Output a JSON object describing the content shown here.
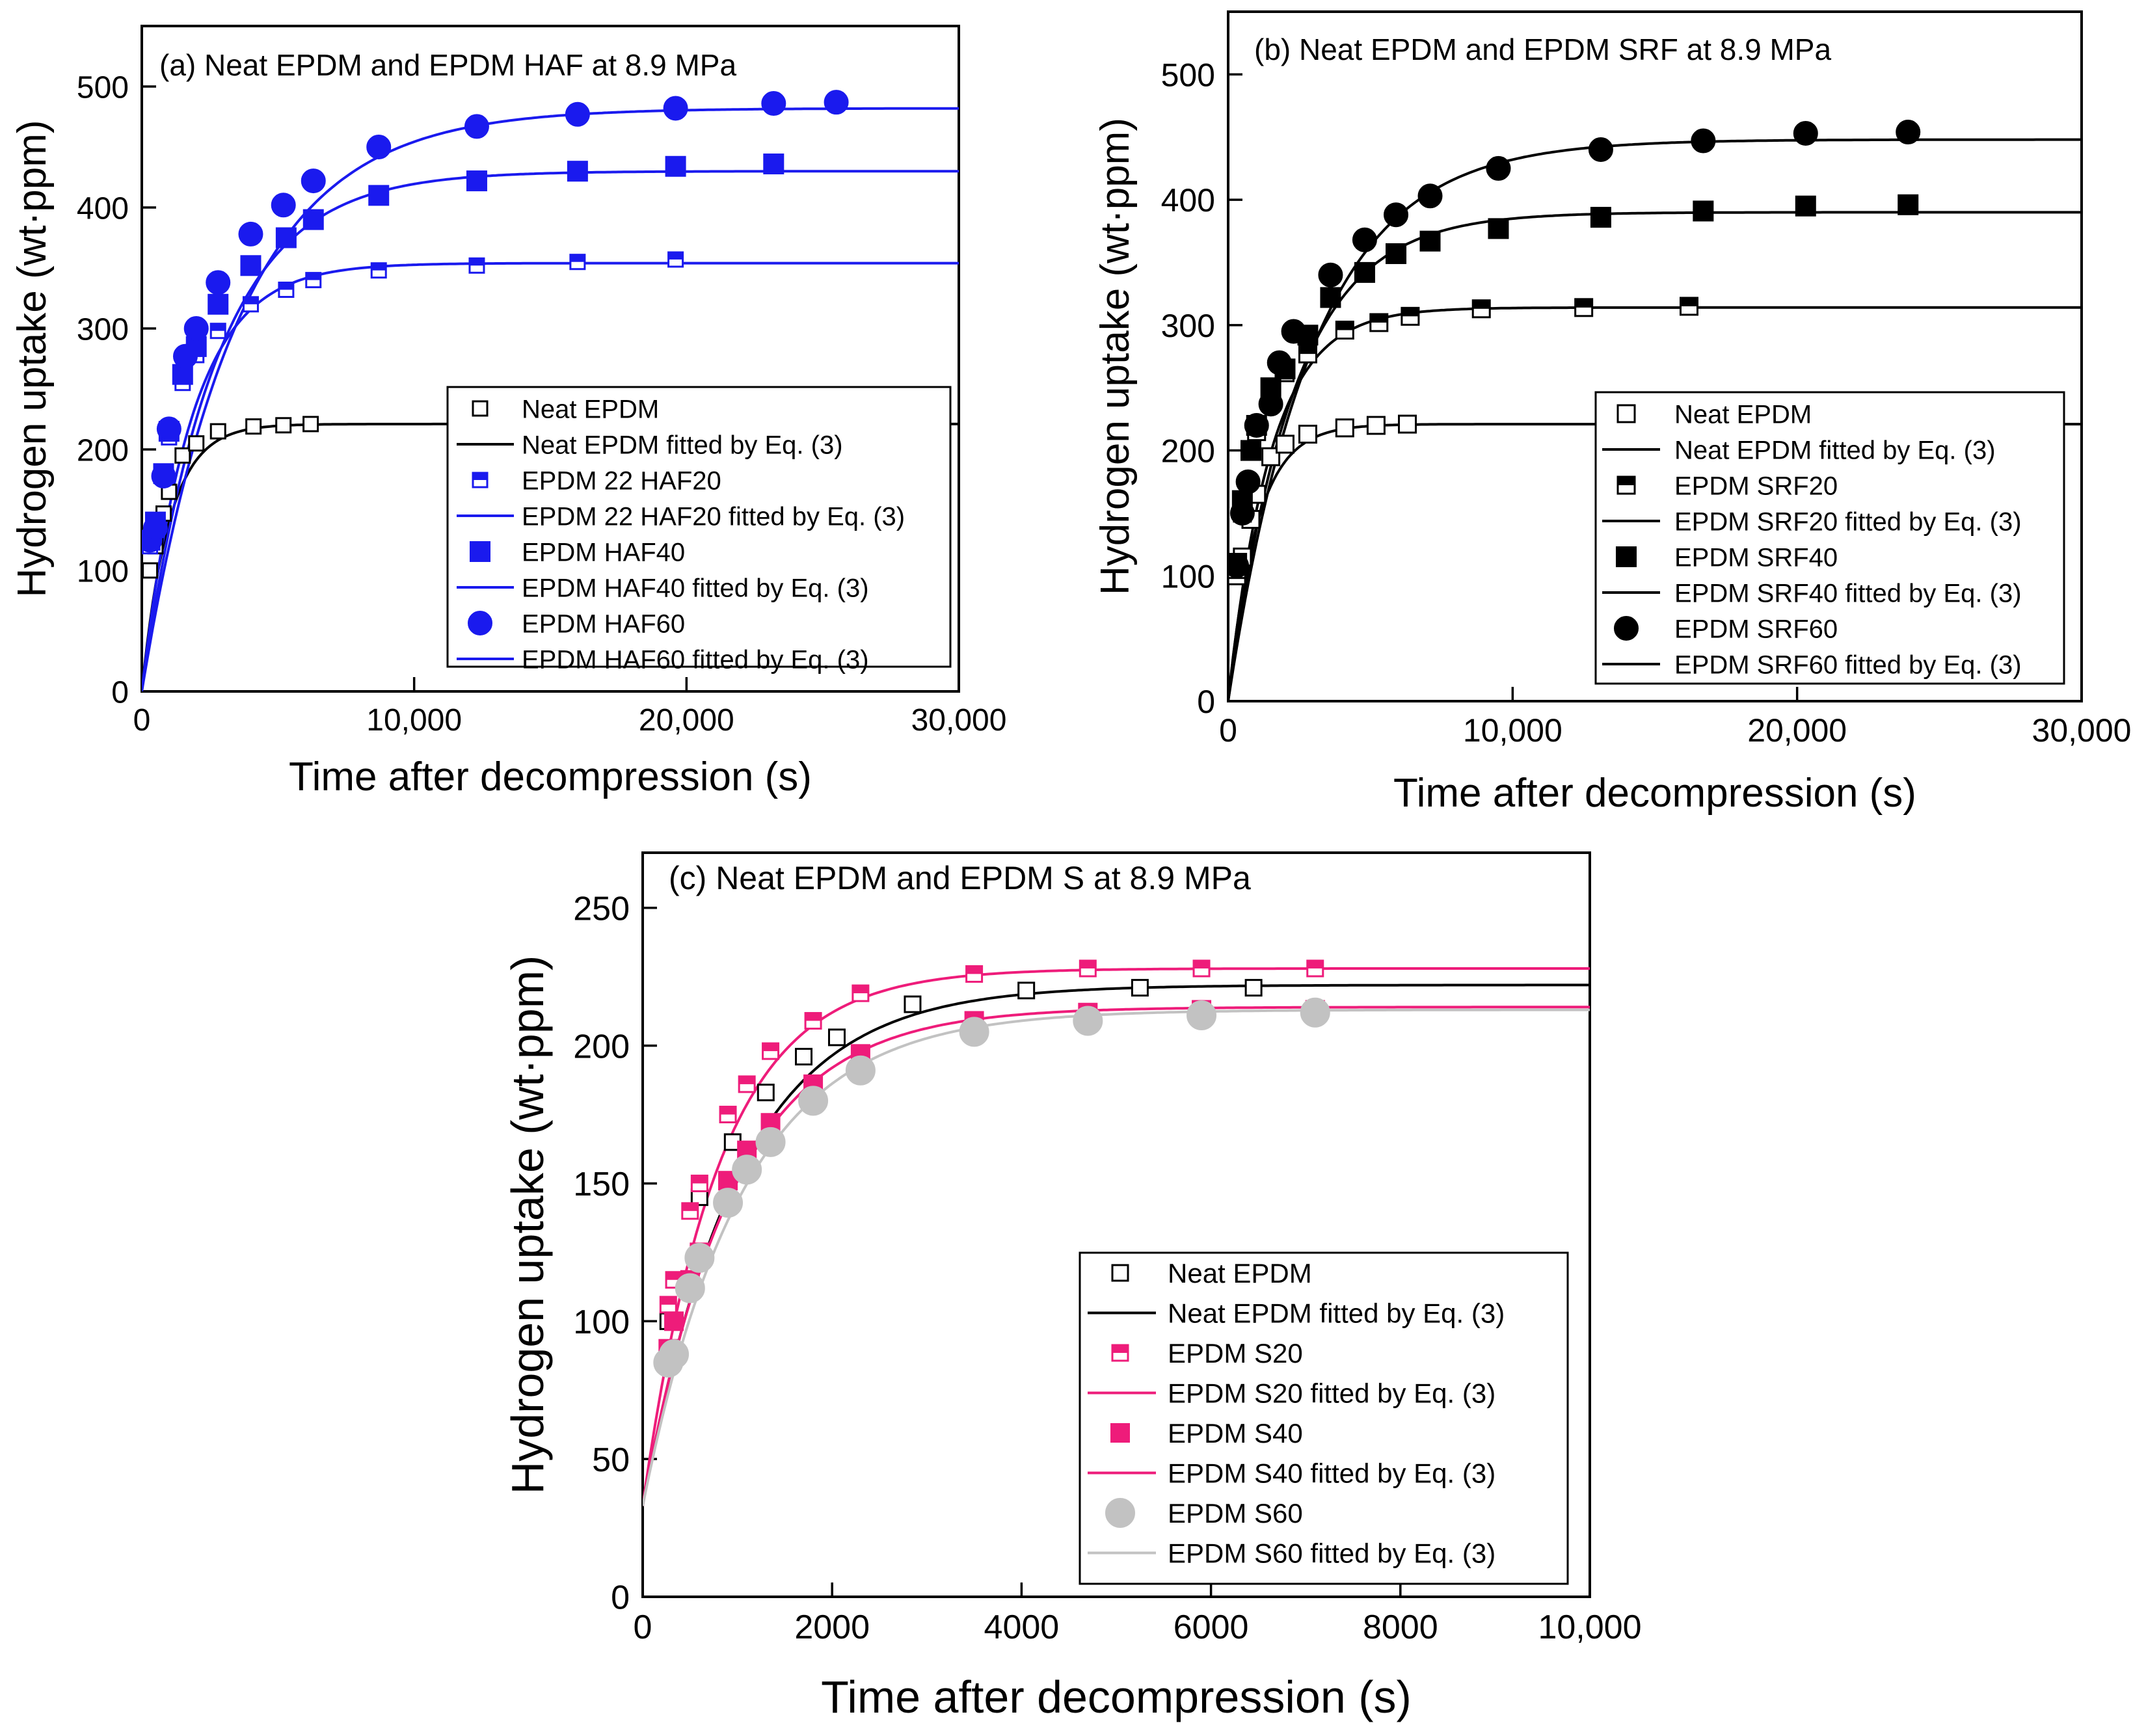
{
  "chart_data": [
    {
      "type": "scatter",
      "panel": "a",
      "title": "(a) Neat EPDM and EPDM HAF at 8.9 MPa",
      "xlabel": "Time after decompression (s)",
      "ylabel": "Hydrogen uptake (wt·ppm)",
      "xlim": [
        0,
        30000
      ],
      "ylim": [
        0,
        550
      ],
      "xticks": [
        0,
        10000,
        20000,
        30000
      ],
      "xtick_labels": [
        "0",
        "10,000",
        "20,000",
        "30,000"
      ],
      "yticks": [
        0,
        100,
        200,
        300,
        400,
        500
      ],
      "ytick_labels": [
        "0",
        "100",
        "200",
        "300",
        "400",
        "500"
      ],
      "legend_position": "lower-right",
      "series": [
        {
          "name": "Neat EPDM",
          "kind": "points",
          "marker": "square-open",
          "color": "#000000",
          "x": [
            300,
            500,
            800,
            1000,
            1500,
            2000,
            2800,
            4100,
            5200,
            6200
          ],
          "y": [
            100,
            120,
            147,
            165,
            195,
            205,
            215,
            219,
            220,
            221
          ]
        },
        {
          "name": "Neat EPDM fitted by Eq. (3)",
          "kind": "fit",
          "color": "#000000",
          "fit": {
            "a": 221,
            "tau": 1000,
            "b": 0
          },
          "x_range": [
            0,
            30000
          ]
        },
        {
          "name": "EPDM 22 HAF20",
          "kind": "points",
          "marker": "square-half",
          "color": "#1a1aee",
          "x": [
            300,
            500,
            800,
            1000,
            1500,
            2000,
            2800,
            4000,
            5300,
            6300,
            8700,
            12300,
            16000,
            19600
          ],
          "y": [
            120,
            135,
            180,
            210,
            255,
            278,
            298,
            320,
            332,
            340,
            348,
            352,
            355,
            357
          ]
        },
        {
          "name": "EPDM 22 HAF20 fitted by Eq. (3)",
          "kind": "fit",
          "color": "#1a1aee",
          "fit": {
            "a": 354,
            "tau": 1800,
            "b": 0
          },
          "x_range": [
            0,
            30000
          ]
        },
        {
          "name": "EPDM HAF40",
          "kind": "points",
          "marker": "square-filled",
          "color": "#1a1aee",
          "x": [
            300,
            500,
            800,
            1000,
            1500,
            2000,
            2800,
            4000,
            5300,
            6300,
            8700,
            12300,
            16000,
            19600,
            23200
          ],
          "y": [
            125,
            140,
            180,
            215,
            262,
            285,
            320,
            352,
            375,
            390,
            410,
            422,
            430,
            434,
            436
          ]
        },
        {
          "name": "EPDM HAF40 fitted by Eq. (3)",
          "kind": "fit",
          "color": "#1a1aee",
          "fit": {
            "a": 430,
            "tau": 2700,
            "b": 0
          },
          "x_range": [
            0,
            30000
          ]
        },
        {
          "name": "EPDM HAF60",
          "kind": "points",
          "marker": "circle-filled",
          "color": "#1a1aee",
          "x": [
            300,
            500,
            800,
            1000,
            1600,
            2000,
            2800,
            4000,
            5200,
            6300,
            8700,
            12300,
            16000,
            19600,
            23200,
            25500
          ],
          "y": [
            125,
            135,
            178,
            217,
            277,
            300,
            338,
            378,
            402,
            422,
            450,
            467,
            477,
            482,
            486,
            487
          ]
        },
        {
          "name": "EPDM HAF60 fitted by Eq. (3)",
          "kind": "fit",
          "color": "#1a1aee",
          "fit": {
            "a": 482,
            "tau": 3500,
            "b": 0
          },
          "x_range": [
            0,
            30000
          ]
        }
      ]
    },
    {
      "type": "scatter",
      "panel": "b",
      "title": "(b) Neat EPDM and EPDM SRF at 8.9 MPa",
      "xlabel": "Time after decompression (s)",
      "ylabel": "Hydrogen uptake (wt·ppm)",
      "xlim": [
        0,
        30000
      ],
      "ylim": [
        0,
        550
      ],
      "xticks": [
        0,
        10000,
        20000,
        30000
      ],
      "xtick_labels": [
        "0",
        "10,000",
        "20,000",
        "30,000"
      ],
      "yticks": [
        0,
        100,
        200,
        300,
        400,
        500
      ],
      "ytick_labels": [
        "0",
        "100",
        "200",
        "300",
        "400",
        "500"
      ],
      "legend_position": "lower-right",
      "series": [
        {
          "name": "Neat EPDM",
          "kind": "points",
          "marker": "square-open",
          "color": "#000000",
          "x": [
            300,
            500,
            800,
            1000,
            1500,
            2000,
            2800,
            4100,
            5200,
            6300
          ],
          "y": [
            100,
            115,
            145,
            165,
            195,
            205,
            213,
            218,
            220,
            221
          ]
        },
        {
          "name": "Neat EPDM fitted by Eq. (3)",
          "kind": "fit",
          "color": "#000000",
          "fit": {
            "a": 221,
            "tau": 1000,
            "b": 0
          },
          "x_range": [
            0,
            30000
          ]
        },
        {
          "name": "EPDM SRF20",
          "kind": "points",
          "marker": "square-half",
          "color": "#000000",
          "x": [
            300,
            500,
            800,
            1000,
            1500,
            2000,
            2800,
            4100,
            5300,
            6400,
            8900,
            12500,
            16200
          ],
          "y": [
            105,
            150,
            200,
            215,
            245,
            262,
            277,
            296,
            302,
            307,
            313,
            314,
            315
          ]
        },
        {
          "name": "EPDM SRF20 fitted by Eq. (3)",
          "kind": "fit",
          "color": "#000000",
          "fit": {
            "a": 314,
            "tau": 1500,
            "b": 0
          },
          "x_range": [
            0,
            30000
          ]
        },
        {
          "name": "EPDM SRF40",
          "kind": "points",
          "marker": "square-filled",
          "color": "#000000",
          "x": [
            300,
            500,
            800,
            1000,
            1500,
            2000,
            2800,
            3600,
            4800,
            5900,
            7100,
            9500,
            13100,
            16700,
            20300,
            23900
          ],
          "y": [
            110,
            160,
            200,
            220,
            250,
            265,
            292,
            322,
            342,
            357,
            367,
            377,
            386,
            391,
            395,
            396
          ]
        },
        {
          "name": "EPDM SRF40 fitted by Eq. (3)",
          "kind": "fit",
          "color": "#000000",
          "fit": {
            "a": 390,
            "tau": 2300,
            "b": 0
          },
          "x_range": [
            0,
            30000
          ]
        },
        {
          "name": "EPDM SRF60",
          "kind": "points",
          "marker": "circle-filled",
          "color": "#000000",
          "x": [
            300,
            500,
            700,
            1000,
            1500,
            1800,
            2300,
            3600,
            4800,
            5900,
            7100,
            9500,
            13100,
            16700,
            20300,
            23900
          ],
          "y": [
            108,
            150,
            175,
            220,
            237,
            270,
            295,
            340,
            368,
            388,
            403,
            425,
            440,
            447,
            453,
            454
          ]
        },
        {
          "name": "EPDM SRF60 fitted by Eq. (3)",
          "kind": "fit",
          "color": "#000000",
          "fit": {
            "a": 448,
            "tau": 3000,
            "b": 0
          },
          "x_range": [
            0,
            30000
          ]
        }
      ]
    },
    {
      "type": "scatter",
      "panel": "c",
      "title": "(c) Neat EPDM and EPDM S at 8.9 MPa",
      "xlabel": "Time after decompression (s)",
      "ylabel": "Hydrogen uptake (wt·ppm)",
      "xlim": [
        0,
        10000
      ],
      "ylim": [
        0,
        270
      ],
      "xticks": [
        0,
        2000,
        4000,
        6000,
        8000,
        10000
      ],
      "xtick_labels": [
        "0",
        "2000",
        "4000",
        "6000",
        "8000",
        "10,000"
      ],
      "yticks": [
        0,
        50,
        100,
        150,
        200,
        250
      ],
      "ytick_labels": [
        "0",
        "50",
        "100",
        "150",
        "200",
        "250"
      ],
      "legend_position": "lower-right",
      "series": [
        {
          "name": "Neat EPDM",
          "kind": "points",
          "marker": "square-open",
          "color": "#000000",
          "x": [
            270,
            600,
            950,
            1300,
            1700,
            2050,
            2850,
            4050,
            5250,
            6450
          ],
          "y": [
            100,
            145,
            165,
            183,
            196,
            203,
            215,
            220,
            221,
            221
          ]
        },
        {
          "name": "Neat EPDM fitted by Eq. (3)",
          "kind": "fit",
          "color": "#000000",
          "fit": {
            "a": 222,
            "tau": 1000,
            "b": 33
          },
          "x_range": [
            0,
            10000
          ]
        },
        {
          "name": "EPDM S20",
          "kind": "points",
          "marker": "square-half",
          "color": "#ee1c7a",
          "x": [
            270,
            330,
            500,
            600,
            900,
            1100,
            1350,
            1800,
            2300,
            3500,
            4700,
            5900,
            7100
          ],
          "y": [
            106,
            115,
            140,
            150,
            175,
            186,
            198,
            209,
            219,
            226,
            228,
            228,
            228
          ]
        },
        {
          "name": "EPDM S20 fitted by Eq. (3)",
          "kind": "fit",
          "color": "#ee1c7a",
          "fit": {
            "a": 228,
            "tau": 800,
            "b": 33
          },
          "x_range": [
            0,
            10000
          ]
        },
        {
          "name": "EPDM S40",
          "kind": "points",
          "marker": "square-filled",
          "color": "#ee1c7a",
          "x": [
            270,
            330,
            500,
            600,
            900,
            1100,
            1350,
            1800,
            2300,
            3500,
            4700,
            5900,
            7100
          ],
          "y": [
            90,
            100,
            115,
            125,
            151,
            162,
            172,
            186,
            197,
            209,
            212,
            213,
            213
          ]
        },
        {
          "name": "EPDM S40 fitted by Eq. (3)",
          "kind": "fit",
          "color": "#ee1c7a",
          "fit": {
            "a": 214,
            "tau": 950,
            "b": 33
          },
          "x_range": [
            0,
            10000
          ]
        },
        {
          "name": "EPDM S60",
          "kind": "points",
          "marker": "circle-filled",
          "color": "#c2c2c2",
          "x": [
            270,
            330,
            500,
            600,
            900,
            1100,
            1350,
            1800,
            2300,
            3500,
            4700,
            5900,
            7100
          ],
          "y": [
            85,
            88,
            112,
            123,
            143,
            155,
            165,
            180,
            191,
            205,
            209,
            211,
            212
          ]
        },
        {
          "name": "EPDM S60 fitted by Eq. (3)",
          "kind": "fit",
          "color": "#c2c2c2",
          "fit": {
            "a": 213,
            "tau": 1050,
            "b": 33
          },
          "x_range": [
            0,
            10000
          ]
        }
      ]
    }
  ]
}
